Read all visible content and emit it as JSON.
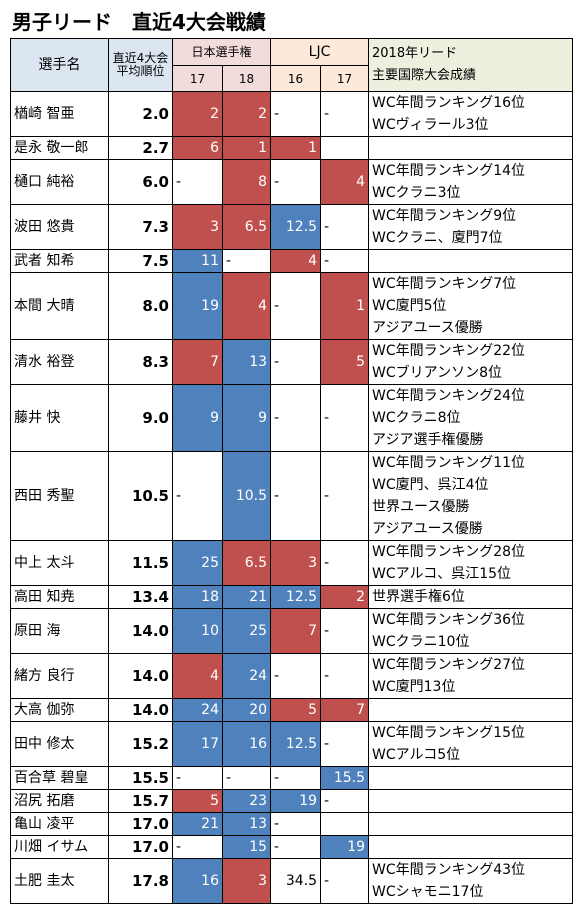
{
  "title": "男子リード　直近4大会戦績",
  "header": {
    "name": "選手名",
    "avg": [
      "直近4大会",
      "平均順位"
    ],
    "groups": [
      "日本選手権",
      "LJC"
    ],
    "years": [
      "17",
      "18",
      "16",
      "17"
    ],
    "notes": [
      "2018年リード",
      "主要国際大会成績"
    ]
  },
  "rows": [
    {
      "name": "楢崎 智亜",
      "avg": "2.0",
      "cells": [
        {
          "text": "2",
          "fill": "#c0504d"
        },
        {
          "text": "2",
          "fill": "#c0504d"
        },
        {
          "text": "-"
        },
        {
          "text": "-"
        }
      ],
      "notes": [
        "WC年間ランキング16位",
        "WCヴィラール3位"
      ]
    },
    {
      "name": "是永 敬一郎",
      "avg": "2.7",
      "cells": [
        {
          "text": "6",
          "fill": "#c0504d"
        },
        {
          "text": "1",
          "fill": "#c0504d"
        },
        {
          "text": "1",
          "fill": "#c0504d"
        },
        null
      ],
      "notes": []
    },
    {
      "name": "樋口 純裕",
      "avg": "6.0",
      "cells": [
        {
          "text": "-"
        },
        {
          "text": "8",
          "fill": "#c0504d"
        },
        {
          "text": "-"
        },
        {
          "text": "4",
          "fill": "#c0504d"
        }
      ],
      "notes": [
        "WC年間ランキング14位",
        "WCクラニ3位"
      ]
    },
    {
      "name": "波田 悠貴",
      "avg": "7.3",
      "cells": [
        {
          "text": "3",
          "fill": "#c0504d"
        },
        {
          "text": "6.5",
          "fill": "#c0504d"
        },
        {
          "text": "12.5",
          "fill": "#4f81bd"
        },
        {
          "text": "-"
        }
      ],
      "notes": [
        "WC年間ランキング9位",
        "WCクラニ、廈門7位"
      ]
    },
    {
      "name": "武者 知希",
      "avg": "7.5",
      "cells": [
        {
          "text": "11",
          "fill": "#4f81bd"
        },
        {
          "text": "-"
        },
        {
          "text": "4",
          "fill": "#c0504d"
        },
        {
          "text": "-"
        }
      ],
      "notes": []
    },
    {
      "name": "本間 大晴",
      "avg": "8.0",
      "cells": [
        {
          "text": "19",
          "fill": "#4f81bd"
        },
        {
          "text": "4",
          "fill": "#c0504d"
        },
        {
          "text": "-"
        },
        {
          "text": "1",
          "fill": "#c0504d"
        }
      ],
      "notes": [
        "WC年間ランキング7位",
        "WC廈門5位",
        "アジアユース優勝"
      ]
    },
    {
      "name": "清水 裕登",
      "avg": "8.3",
      "cells": [
        {
          "text": "7",
          "fill": "#c0504d"
        },
        {
          "text": "13",
          "fill": "#4f81bd"
        },
        {
          "text": "-"
        },
        {
          "text": "5",
          "fill": "#c0504d"
        }
      ],
      "notes": [
        "WC年間ランキング22位",
        "WCブリアンソン8位"
      ]
    },
    {
      "name": "藤井 快",
      "avg": "9.0",
      "cells": [
        {
          "text": "9",
          "fill": "#4f81bd"
        },
        {
          "text": "9",
          "fill": "#4f81bd"
        },
        {
          "text": "-"
        },
        {
          "text": "-"
        }
      ],
      "notes": [
        "WC年間ランキング24位",
        "WCクラニ8位",
        "アジア選手権優勝"
      ]
    },
    {
      "name": "西田 秀聖",
      "avg": "10.5",
      "cells": [
        {
          "text": "-"
        },
        {
          "text": "10.5",
          "fill": "#4f81bd"
        },
        {
          "text": "-"
        },
        {
          "text": "-"
        }
      ],
      "notes": [
        "WC年間ランキング11位",
        "WC廈門、呉江4位",
        "世界ユース優勝",
        "アジアユース優勝"
      ]
    },
    {
      "name": "中上 太斗",
      "avg": "11.5",
      "cells": [
        {
          "text": "25",
          "fill": "#4f81bd"
        },
        {
          "text": "6.5",
          "fill": "#c0504d"
        },
        {
          "text": "3",
          "fill": "#c0504d"
        },
        {
          "text": "-"
        }
      ],
      "notes": [
        "WC年間ランキング28位",
        "WCアルコ、呉江15位"
      ]
    },
    {
      "name": "高田 知尭",
      "avg": "13.4",
      "cells": [
        {
          "text": "18",
          "fill": "#4f81bd"
        },
        {
          "text": "21",
          "fill": "#4f81bd"
        },
        {
          "text": "12.5",
          "fill": "#4f81bd"
        },
        {
          "text": "2",
          "fill": "#c0504d"
        }
      ],
      "notes": [
        "世界選手権6位"
      ]
    },
    {
      "name": "原田 海",
      "avg": "14.0",
      "cells": [
        {
          "text": "10",
          "fill": "#4f81bd"
        },
        {
          "text": "25",
          "fill": "#4f81bd"
        },
        {
          "text": "7",
          "fill": "#c0504d"
        },
        {
          "text": "-"
        }
      ],
      "notes": [
        "WC年間ランキング36位",
        "WCクラニ10位"
      ]
    },
    {
      "name": "緒方 良行",
      "avg": "14.0",
      "cells": [
        {
          "text": "4",
          "fill": "#c0504d"
        },
        {
          "text": "24",
          "fill": "#4f81bd"
        },
        {
          "text": "-"
        },
        {
          "text": "-"
        }
      ],
      "notes": [
        "WC年間ランキング27位",
        "WC廈門13位"
      ]
    },
    {
      "name": "大高 伽弥",
      "avg": "14.0",
      "cells": [
        {
          "text": "24",
          "fill": "#4f81bd"
        },
        {
          "text": "20",
          "fill": "#4f81bd"
        },
        {
          "text": "5",
          "fill": "#c0504d"
        },
        {
          "text": "7",
          "fill": "#c0504d"
        }
      ],
      "notes": []
    },
    {
      "name": "田中 修太",
      "avg": "15.2",
      "cells": [
        {
          "text": "17",
          "fill": "#4f81bd"
        },
        {
          "text": "16",
          "fill": "#4f81bd"
        },
        {
          "text": "12.5",
          "fill": "#4f81bd"
        },
        {
          "text": "-"
        }
      ],
      "notes": [
        "WC年間ランキング15位",
        "WCアルコ5位"
      ]
    },
    {
      "name": "百合草 碧皇",
      "avg": "15.5",
      "cells": [
        {
          "text": "-"
        },
        {
          "text": "-"
        },
        {
          "text": "-"
        },
        {
          "text": "15.5",
          "fill": "#4f81bd"
        }
      ],
      "notes": []
    },
    {
      "name": "沼尻 拓磨",
      "avg": "15.7",
      "cells": [
        {
          "text": "5",
          "fill": "#c0504d"
        },
        {
          "text": "23",
          "fill": "#4f81bd"
        },
        {
          "text": "19",
          "fill": "#4f81bd"
        },
        {
          "text": "-"
        }
      ],
      "notes": []
    },
    {
      "name": "亀山 凌平",
      "avg": "17.0",
      "cells": [
        {
          "text": "21",
          "fill": "#4f81bd"
        },
        {
          "text": "13",
          "fill": "#4f81bd"
        },
        {
          "text": "-"
        },
        null
      ],
      "notes": []
    },
    {
      "name": "川畑 イサム",
      "avg": "17.0",
      "cells": [
        {
          "text": "-"
        },
        {
          "text": "15",
          "fill": "#4f81bd"
        },
        {
          "text": "-"
        },
        {
          "text": "19",
          "fill": "#4f81bd"
        }
      ],
      "notes": []
    },
    {
      "name": "土肥 圭太",
      "avg": "17.8",
      "cells": [
        {
          "text": "16",
          "fill": "#4f81bd"
        },
        {
          "text": "3",
          "fill": "#c0504d"
        },
        {
          "text": "34.5"
        },
        {
          "text": "-"
        }
      ],
      "notes": [
        "WC年間ランキング43位",
        "WCシャモニ17位"
      ]
    }
  ]
}
